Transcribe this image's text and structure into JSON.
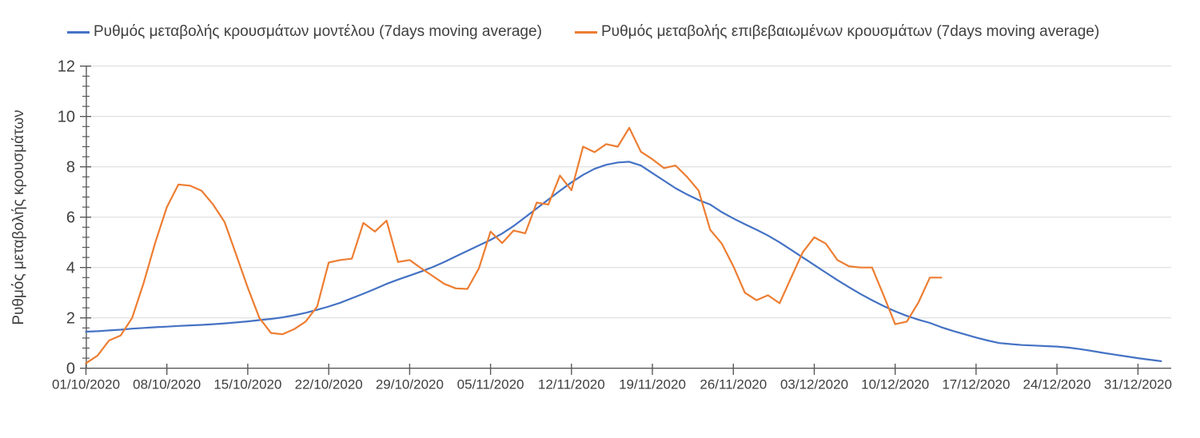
{
  "chart_data": {
    "type": "line",
    "title": "",
    "xlabel": "",
    "ylabel": "Ρυθμός μεταβολής κρουσμάτων",
    "ylim": [
      0,
      12
    ],
    "y_major_ticks": [
      0,
      2,
      4,
      6,
      8,
      10,
      12
    ],
    "y_minor_step": 0.4,
    "grid": "horizontal-only",
    "legend_position": "top",
    "axis_color": "#595959",
    "grid_color": "#D9D9D9",
    "text_color": "#404040",
    "x_start": "01/10/2020",
    "x_step_days": 1,
    "x_tick_every_days": 7,
    "x_tick_labels": [
      "01/10/2020",
      "08/10/2020",
      "15/10/2020",
      "22/10/2020",
      "29/10/2020",
      "05/11/2020",
      "12/11/2020",
      "19/11/2020",
      "26/11/2020",
      "03/12/2020",
      "10/12/2020",
      "17/12/2020",
      "24/12/2020",
      "31/12/2020"
    ],
    "series": [
      {
        "name": "Ρυθμός μεταβολής κρουσμάτων μοντέλου (7days moving average)",
        "color": "#4472C4",
        "values": [
          1.45,
          1.47,
          1.5,
          1.53,
          1.57,
          1.6,
          1.63,
          1.65,
          1.68,
          1.7,
          1.72,
          1.75,
          1.78,
          1.82,
          1.86,
          1.91,
          1.96,
          2.02,
          2.1,
          2.2,
          2.32,
          2.45,
          2.6,
          2.78,
          2.96,
          3.15,
          3.35,
          3.52,
          3.68,
          3.84,
          4.02,
          4.22,
          4.44,
          4.66,
          4.88,
          5.1,
          5.35,
          5.65,
          6.0,
          6.35,
          6.7,
          7.05,
          7.38,
          7.68,
          7.92,
          8.08,
          8.17,
          8.2,
          8.05,
          7.75,
          7.45,
          7.15,
          6.9,
          6.68,
          6.5,
          6.2,
          5.95,
          5.72,
          5.5,
          5.27,
          5.0,
          4.7,
          4.4,
          4.1,
          3.8,
          3.5,
          3.22,
          2.95,
          2.7,
          2.47,
          2.26,
          2.08,
          1.93,
          1.8,
          1.63,
          1.48,
          1.35,
          1.22,
          1.1,
          1.0,
          0.96,
          0.92,
          0.9,
          0.88,
          0.86,
          0.82,
          0.76,
          0.69,
          0.61,
          0.54,
          0.47,
          0.4,
          0.34,
          0.28
        ]
      },
      {
        "name": "Ρυθμός μεταβολής επιβεβαιωμένων κρουσμάτων (7days moving average)",
        "color": "#ED7D31",
        "values": [
          0.2,
          0.5,
          1.1,
          1.3,
          2.0,
          3.4,
          5.0,
          6.4,
          7.3,
          7.25,
          7.05,
          6.5,
          5.8,
          4.5,
          3.2,
          2.0,
          1.4,
          1.35,
          1.55,
          1.85,
          2.45,
          4.2,
          4.3,
          4.35,
          5.77,
          5.43,
          5.86,
          4.22,
          4.3,
          3.97,
          3.66,
          3.35,
          3.17,
          3.15,
          3.97,
          5.43,
          4.97,
          5.47,
          5.36,
          6.58,
          6.5,
          7.65,
          7.07,
          8.8,
          8.58,
          8.9,
          8.8,
          9.55,
          8.6,
          8.3,
          7.95,
          8.05,
          7.6,
          7.05,
          5.5,
          4.95,
          4.05,
          3.0,
          2.7,
          2.9,
          2.58,
          3.6,
          4.6,
          5.2,
          4.95,
          4.3,
          4.05,
          4.0,
          4.0,
          2.9,
          1.75,
          1.85,
          2.6,
          3.6,
          3.6
        ]
      }
    ]
  }
}
